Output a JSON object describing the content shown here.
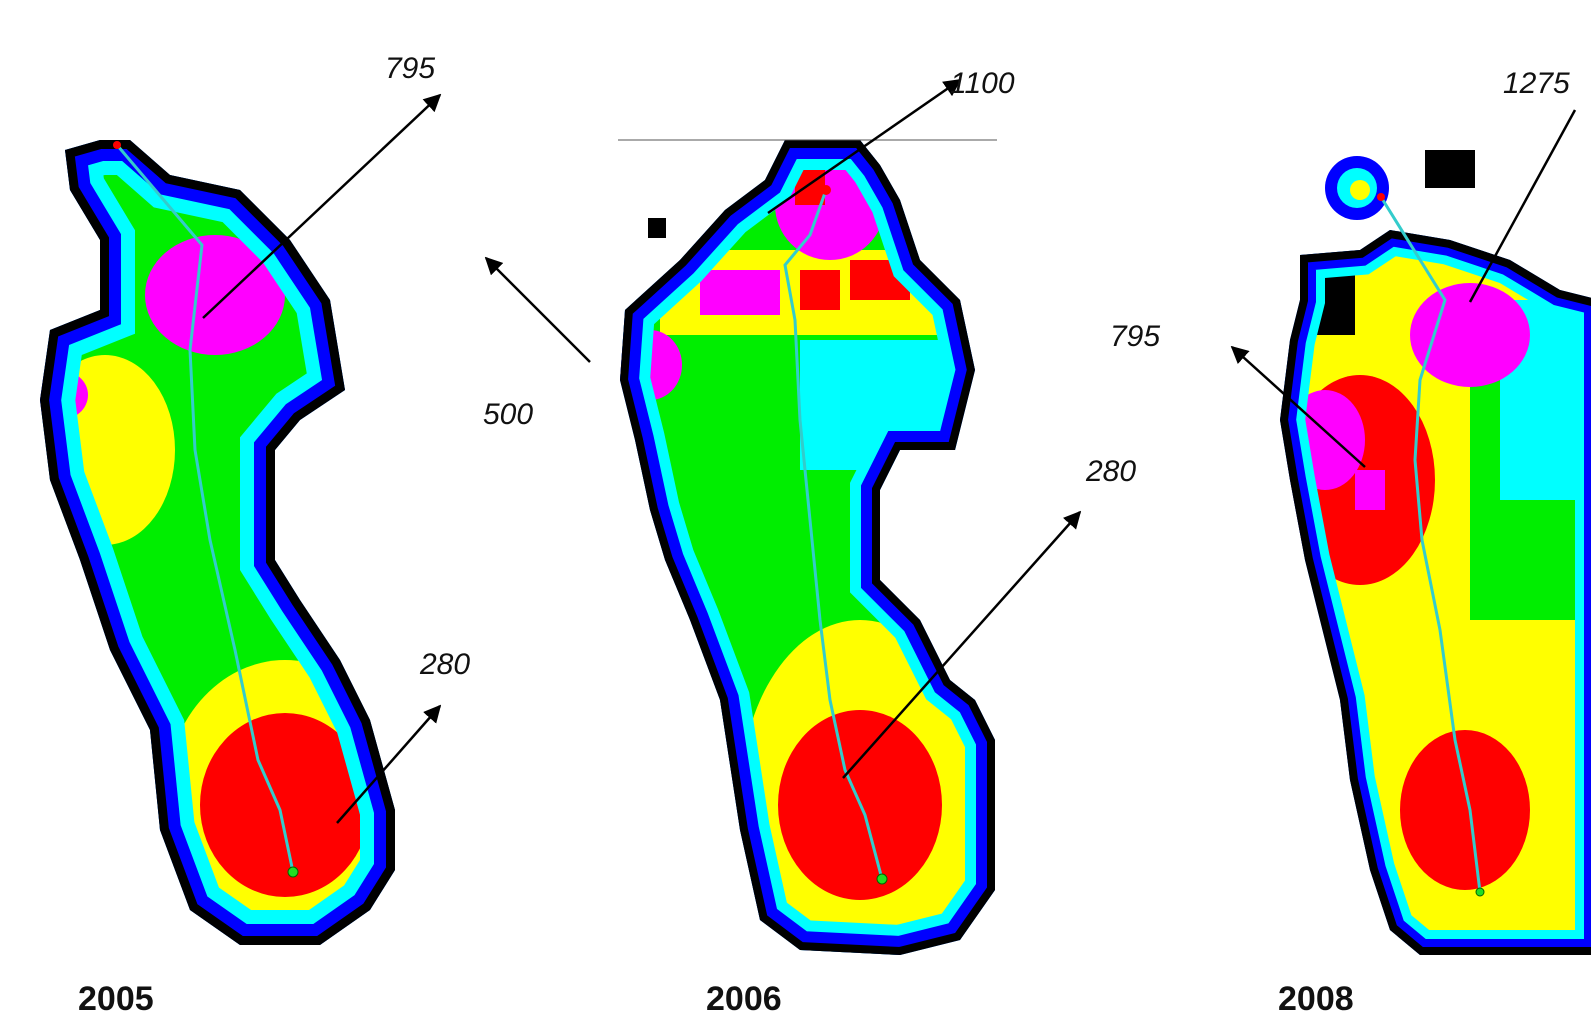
{
  "annotations": [
    "795",
    "280",
    "500",
    "1100",
    "280",
    "795",
    "1275"
  ],
  "panels": [
    {
      "year": "2005"
    },
    {
      "year": "2006"
    },
    {
      "year": "2008"
    }
  ]
}
